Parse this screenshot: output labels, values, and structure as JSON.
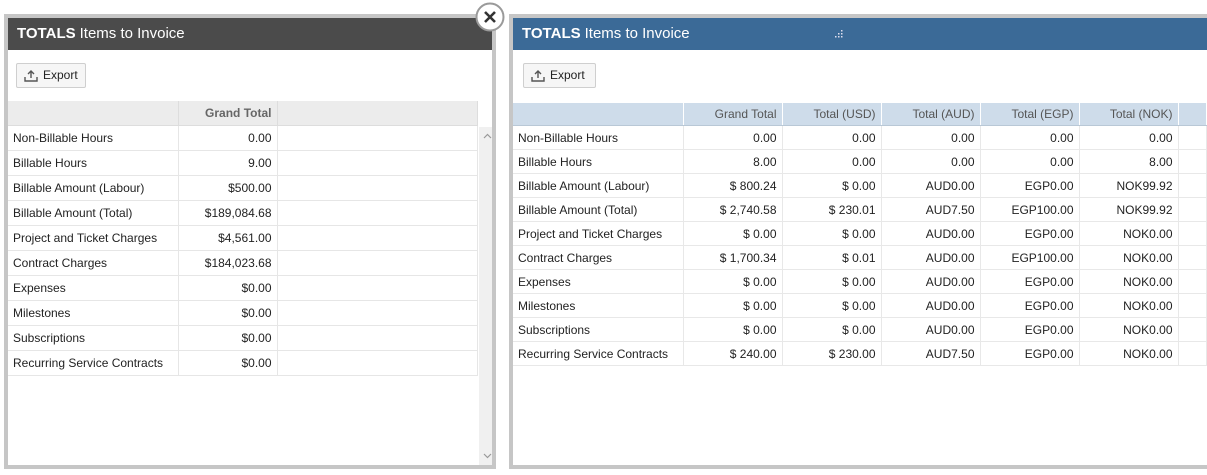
{
  "left": {
    "header": {
      "bold": "TOTALS",
      "title": "Items to Invoice"
    },
    "export": "Export",
    "columns": [
      "Grand Total"
    ],
    "rows": [
      [
        "Non-Billable Hours",
        "0.00"
      ],
      [
        "Billable Hours",
        "9.00"
      ],
      [
        "Billable Amount (Labour)",
        "$500.00"
      ],
      [
        "Billable Amount (Total)",
        "$189,084.68"
      ],
      [
        "Project and Ticket Charges",
        "$4,561.00"
      ],
      [
        "Contract Charges",
        "$184,023.68"
      ],
      [
        "Expenses",
        "$0.00"
      ],
      [
        "Milestones",
        "$0.00"
      ],
      [
        "Subscriptions",
        "$0.00"
      ],
      [
        "Recurring Service Contracts",
        "$0.00"
      ]
    ]
  },
  "right": {
    "header": {
      "bold": "TOTALS",
      "title": "Items to Invoice"
    },
    "export": "Export",
    "columns": [
      "Grand Total",
      "Total (USD)",
      "Total (AUD)",
      "Total (EGP)",
      "Total (NOK)"
    ],
    "rows": [
      [
        "Non-Billable Hours",
        "0.00",
        "0.00",
        "0.00",
        "0.00",
        "0.00"
      ],
      [
        "Billable Hours",
        "8.00",
        "0.00",
        "0.00",
        "0.00",
        "8.00"
      ],
      [
        "Billable Amount (Labour)",
        "$ 800.24",
        "$ 0.00",
        "AUD0.00",
        "EGP0.00",
        "NOK99.92"
      ],
      [
        "Billable Amount (Total)",
        "$ 2,740.58",
        "$ 230.01",
        "AUD7.50",
        "EGP100.00",
        "NOK99.92"
      ],
      [
        "Project and Ticket Charges",
        "$ 0.00",
        "$ 0.00",
        "AUD0.00",
        "EGP0.00",
        "NOK0.00"
      ],
      [
        "Contract Charges",
        "$ 1,700.34",
        "$ 0.01",
        "AUD0.00",
        "EGP100.00",
        "NOK0.00"
      ],
      [
        "Expenses",
        "$ 0.00",
        "$ 0.00",
        "AUD0.00",
        "EGP0.00",
        "NOK0.00"
      ],
      [
        "Milestones",
        "$ 0.00",
        "$ 0.00",
        "AUD0.00",
        "EGP0.00",
        "NOK0.00"
      ],
      [
        "Subscriptions",
        "$ 0.00",
        "$ 0.00",
        "AUD0.00",
        "EGP0.00",
        "NOK0.00"
      ],
      [
        "Recurring Service Contracts",
        "$ 240.00",
        "$ 230.00",
        "AUD7.50",
        "EGP0.00",
        "NOK0.00"
      ]
    ]
  }
}
